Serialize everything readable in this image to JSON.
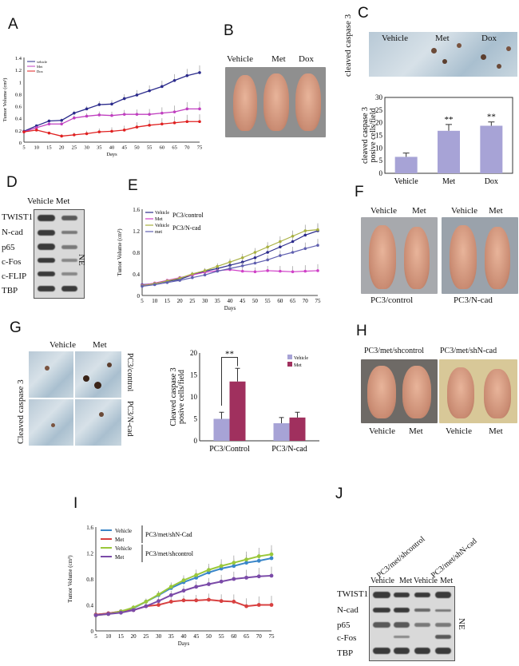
{
  "panels": {
    "A": "A",
    "B": "B",
    "C": "C",
    "D": "D",
    "E": "E",
    "F": "F",
    "G": "G",
    "H": "H",
    "I": "I",
    "J": "J"
  },
  "B": {
    "labels": [
      "Vehicle",
      "Met",
      "Dox"
    ]
  },
  "C": {
    "ihc_labels": [
      "Vehicle",
      "Met",
      "Dox"
    ],
    "side_label": "cleaved caspase 3"
  },
  "D": {
    "header": "Vehicle  Met",
    "rows": [
      "TWIST1",
      "N-cad",
      "p65",
      "c-Fos",
      "c-FLIP",
      "TBP"
    ],
    "ne": "NE"
  },
  "F": {
    "labels_left": [
      "Vehicle",
      "Met"
    ],
    "labels_right": [
      "Vehicle",
      "Met"
    ],
    "captions": [
      "PC3/control",
      "PC3/N-cad"
    ]
  },
  "G": {
    "col_labels": [
      "Vehicle",
      "Met"
    ],
    "row_labels": [
      "PC3/control",
      "PC3/N-cad"
    ],
    "side_label": "Cleaved caspase 3"
  },
  "H": {
    "top_labels": [
      "PC3/met/shcontrol",
      "PC3/met/shN-cad"
    ],
    "bottom_labels": [
      "Vehicle",
      "Met",
      "Vehicle",
      "Met"
    ]
  },
  "J": {
    "col_groups": [
      "PC3/met/shcontrol",
      "PC3/met/shN-cad"
    ],
    "cols": [
      "Vehicle",
      "Met",
      "Vehicle",
      "Met"
    ],
    "rows": [
      "TWIST1",
      "N-cad",
      "p65",
      "c-Fos",
      "TBP"
    ],
    "ne": "NE"
  },
  "chart_data": [
    {
      "id": "A",
      "type": "line",
      "title": "",
      "xlabel": "Days",
      "ylabel": "Tumor Volume (cm³)",
      "x": [
        5,
        10,
        15,
        20,
        25,
        30,
        35,
        40,
        45,
        50,
        55,
        60,
        65,
        70,
        75
      ],
      "ylim": [
        0,
        1.4
      ],
      "yticks": [
        "0",
        "0.2",
        "0.4",
        "0.6",
        "0.8",
        "1",
        "1.2",
        "1.4"
      ],
      "series": [
        {
          "name": "vehicle",
          "color": "#2b2b8c",
          "values": [
            0.18,
            0.27,
            0.35,
            0.36,
            0.48,
            0.55,
            0.62,
            0.63,
            0.72,
            0.78,
            0.85,
            0.92,
            1.02,
            1.1,
            1.15
          ]
        },
        {
          "name": "Met",
          "color": "#c040c0",
          "values": [
            0.17,
            0.24,
            0.3,
            0.3,
            0.4,
            0.43,
            0.45,
            0.44,
            0.46,
            0.46,
            0.46,
            0.48,
            0.5,
            0.55,
            0.55
          ]
        },
        {
          "name": "Dox",
          "color": "#e02020",
          "values": [
            0.17,
            0.2,
            0.15,
            0.1,
            0.12,
            0.14,
            0.17,
            0.18,
            0.2,
            0.25,
            0.28,
            0.3,
            0.32,
            0.34,
            0.34
          ]
        }
      ]
    },
    {
      "id": "C",
      "type": "bar",
      "title": "",
      "xlabel": "",
      "ylabel": "cleaved caspase 3 posive cells/field",
      "categories": [
        "Vehicle",
        "Met",
        "Dox"
      ],
      "values": [
        6.5,
        16.8,
        18.8
      ],
      "errors": [
        1.5,
        2.5,
        1.5
      ],
      "ylim": [
        0,
        30
      ],
      "yticks": [
        "0",
        "5",
        "10",
        "15",
        "20",
        "25",
        "30"
      ],
      "annotations": [
        "",
        "**",
        "**"
      ],
      "color": "#a7a3d6"
    },
    {
      "id": "E",
      "type": "line",
      "title": "",
      "xlabel": "Days",
      "ylabel": "Tumor Volume (cm³)",
      "x": [
        5,
        10,
        15,
        20,
        25,
        30,
        35,
        40,
        45,
        50,
        55,
        60,
        65,
        70,
        75
      ],
      "ylim": [
        0,
        1.6
      ],
      "yticks": [
        "0",
        "0.4",
        "0.8",
        "1.2",
        "1.6"
      ],
      "legend_groups": [
        "PC3/control",
        "PC3/N-cad"
      ],
      "series": [
        {
          "name": "Vehicle",
          "color": "#2b2b8c",
          "values": [
            0.2,
            0.22,
            0.26,
            0.3,
            0.38,
            0.45,
            0.5,
            0.56,
            0.62,
            0.7,
            0.8,
            0.9,
            1.0,
            1.12,
            1.2
          ]
        },
        {
          "name": "Met",
          "color": "#d040c8",
          "values": [
            0.19,
            0.23,
            0.28,
            0.33,
            0.38,
            0.43,
            0.46,
            0.48,
            0.45,
            0.44,
            0.46,
            0.45,
            0.44,
            0.45,
            0.46
          ]
        },
        {
          "name": "Vehicle",
          "color": "#a8b040",
          "values": [
            0.18,
            0.22,
            0.27,
            0.32,
            0.4,
            0.46,
            0.54,
            0.62,
            0.7,
            0.8,
            0.9,
            1.0,
            1.1,
            1.2,
            1.22
          ]
        },
        {
          "name": "met",
          "color": "#6060b0",
          "values": [
            0.17,
            0.2,
            0.24,
            0.28,
            0.33,
            0.38,
            0.45,
            0.5,
            0.55,
            0.6,
            0.66,
            0.74,
            0.8,
            0.87,
            0.93
          ]
        }
      ]
    },
    {
      "id": "G",
      "type": "bar",
      "title": "",
      "xlabel": "",
      "ylabel": "Cleaved caspase 3 posive cells/field",
      "categories": [
        "PC3/Control",
        "PC3/N-cad"
      ],
      "series": [
        {
          "name": "Vehicle",
          "color": "#a7a3d6",
          "values": [
            5,
            4
          ]
        },
        {
          "name": "Met",
          "color": "#a0305e",
          "values": [
            13.5,
            5.3
          ]
        }
      ],
      "errors": [
        [
          1.5,
          1.3
        ],
        [
          3,
          1.2
        ]
      ],
      "ylim": [
        0,
        20
      ],
      "yticks": [
        "0",
        "5",
        "10",
        "15",
        "20"
      ],
      "annotation": "**"
    },
    {
      "id": "I",
      "type": "line",
      "title": "",
      "xlabel": "Days",
      "ylabel": "Tumor Volume (cm³)",
      "x": [
        5,
        10,
        15,
        20,
        25,
        30,
        35,
        40,
        45,
        50,
        55,
        60,
        65,
        70,
        75
      ],
      "ylim": [
        0,
        1.6
      ],
      "yticks": [
        "0",
        "0.4",
        "0.8",
        "1.2",
        "1.6"
      ],
      "legend_groups": [
        "PC3/met/shN-Cad",
        "PC3/met/shcontrol"
      ],
      "series": [
        {
          "name": "Vehicle",
          "color": "#3a86c8",
          "values": [
            0.25,
            0.27,
            0.3,
            0.35,
            0.45,
            0.55,
            0.66,
            0.75,
            0.82,
            0.9,
            0.96,
            1.0,
            1.05,
            1.08,
            1.12
          ]
        },
        {
          "name": "Met",
          "color": "#d84040",
          "values": [
            0.25,
            0.27,
            0.3,
            0.32,
            0.38,
            0.4,
            0.45,
            0.47,
            0.47,
            0.48,
            0.46,
            0.45,
            0.38,
            0.4,
            0.4
          ]
        },
        {
          "name": "Vehicle",
          "color": "#9ac83a",
          "values": [
            0.24,
            0.26,
            0.3,
            0.36,
            0.45,
            0.56,
            0.68,
            0.78,
            0.86,
            0.94,
            1.0,
            1.05,
            1.1,
            1.15,
            1.18
          ]
        },
        {
          "name": "Met",
          "color": "#7a4aa8",
          "values": [
            0.24,
            0.26,
            0.28,
            0.32,
            0.38,
            0.46,
            0.55,
            0.62,
            0.68,
            0.72,
            0.76,
            0.8,
            0.82,
            0.84,
            0.85
          ]
        }
      ]
    }
  ]
}
